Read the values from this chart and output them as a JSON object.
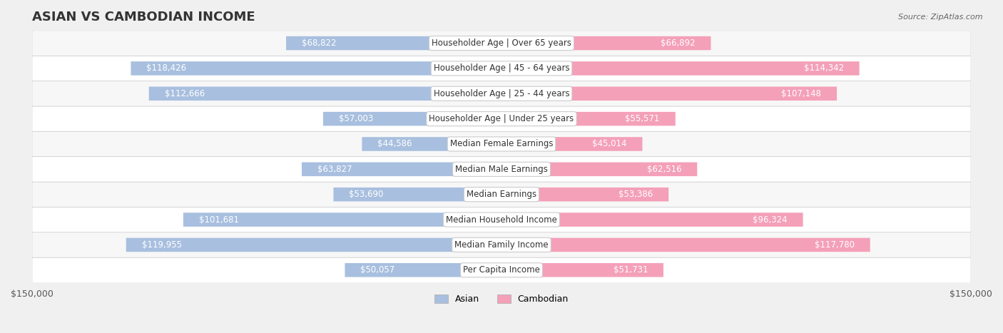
{
  "title": "ASIAN VS CAMBODIAN INCOME",
  "source": "Source: ZipAtlas.com",
  "categories": [
    "Per Capita Income",
    "Median Family Income",
    "Median Household Income",
    "Median Earnings",
    "Median Male Earnings",
    "Median Female Earnings",
    "Householder Age | Under 25 years",
    "Householder Age | 25 - 44 years",
    "Householder Age | 45 - 64 years",
    "Householder Age | Over 65 years"
  ],
  "asian_values": [
    50057,
    119955,
    101681,
    53690,
    63827,
    44586,
    57003,
    112666,
    118426,
    68822
  ],
  "cambodian_values": [
    51731,
    117780,
    96324,
    53386,
    62516,
    45014,
    55571,
    107148,
    114342,
    66892
  ],
  "asian_labels": [
    "$50,057",
    "$119,955",
    "$101,681",
    "$53,690",
    "$63,827",
    "$44,586",
    "$57,003",
    "$112,666",
    "$118,426",
    "$68,822"
  ],
  "cambodian_labels": [
    "$51,731",
    "$117,780",
    "$96,324",
    "$53,386",
    "$62,516",
    "$45,014",
    "$55,571",
    "$107,148",
    "$114,342",
    "$66,892"
  ],
  "asian_color": "#a8bfdf",
  "cambodian_color": "#f4a0b8",
  "asian_label_color_inside": "#ffffff",
  "asian_label_color_outside": "#555555",
  "cambodian_label_color_inside": "#ffffff",
  "cambodian_label_color_outside": "#555555",
  "max_value": 150000,
  "bg_color": "#f5f5f5",
  "row_bg_color": "#eeeeee",
  "bar_height": 0.55,
  "title_fontsize": 13,
  "label_fontsize": 8.5,
  "category_fontsize": 8.5
}
